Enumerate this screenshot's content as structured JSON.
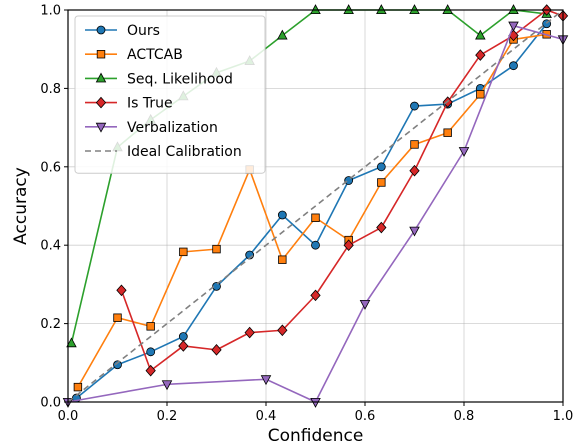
{
  "chart_data": {
    "type": "line",
    "xlabel": "Confidence",
    "ylabel": "Accuracy",
    "xlim": [
      0.0,
      1.0
    ],
    "ylim": [
      0.0,
      1.0
    ],
    "grid": true,
    "legend_position": "top-left",
    "xticks": [
      "0.0",
      "0.2",
      "0.4",
      "0.6",
      "0.8",
      "1.0"
    ],
    "yticks": [
      "0.0",
      "0.2",
      "0.4",
      "0.6",
      "0.8",
      "1.0"
    ],
    "series": [
      {
        "name": "Ours",
        "color": "#1f77b4",
        "marker": "circle",
        "x": [
          0.017,
          0.1,
          0.167,
          0.233,
          0.3,
          0.367,
          0.433,
          0.5,
          0.567,
          0.633,
          0.7,
          0.767,
          0.833,
          0.9,
          0.967
        ],
        "y": [
          0.01,
          0.095,
          0.128,
          0.167,
          0.295,
          0.375,
          0.477,
          0.4,
          0.565,
          0.6,
          0.755,
          0.76,
          0.8,
          0.858,
          0.965
        ]
      },
      {
        "name": "ACTCAB",
        "color": "#ff7f0e",
        "marker": "square",
        "x": [
          0.02,
          0.1,
          0.167,
          0.233,
          0.3,
          0.367,
          0.433,
          0.5,
          0.567,
          0.633,
          0.7,
          0.767,
          0.833,
          0.9,
          0.967
        ],
        "y": [
          0.038,
          0.215,
          0.193,
          0.383,
          0.39,
          0.593,
          0.363,
          0.47,
          0.413,
          0.56,
          0.657,
          0.687,
          0.785,
          0.925,
          0.938
        ]
      },
      {
        "name": "Seq. Likelihood",
        "color": "#2ca02c",
        "marker": "triangle-up",
        "x": [
          0.007,
          0.1,
          0.167,
          0.233,
          0.3,
          0.367,
          0.433,
          0.5,
          0.567,
          0.633,
          0.7,
          0.767,
          0.833,
          0.9,
          0.967
        ],
        "y": [
          0.15,
          0.65,
          0.72,
          0.78,
          0.84,
          0.87,
          0.935,
          1.0,
          1.0,
          1.0,
          1.0,
          1.0,
          0.935,
          1.0,
          0.99
        ]
      },
      {
        "name": "Is True",
        "color": "#d62728",
        "marker": "diamond",
        "x": [
          0.108,
          0.167,
          0.233,
          0.3,
          0.367,
          0.433,
          0.5,
          0.567,
          0.633,
          0.7,
          0.767,
          0.833,
          0.9,
          0.967,
          1.0
        ],
        "y": [
          0.285,
          0.08,
          0.143,
          0.133,
          0.177,
          0.183,
          0.272,
          0.4,
          0.445,
          0.59,
          0.765,
          0.885,
          0.935,
          1.0,
          0.985
        ]
      },
      {
        "name": "Verbalization",
        "color": "#9467bd",
        "marker": "triangle-down",
        "x": [
          0.0,
          0.2,
          0.4,
          0.5,
          0.6,
          0.7,
          0.8,
          0.9,
          1.0
        ],
        "y": [
          0.0,
          0.045,
          0.058,
          0.0,
          0.25,
          0.437,
          0.64,
          0.96,
          0.925
        ]
      },
      {
        "name": "Ideal Calibration",
        "color": "#808080",
        "marker": "none",
        "dashed": true,
        "x": [
          0.0,
          1.0
        ],
        "y": [
          0.0,
          1.0
        ]
      }
    ]
  }
}
